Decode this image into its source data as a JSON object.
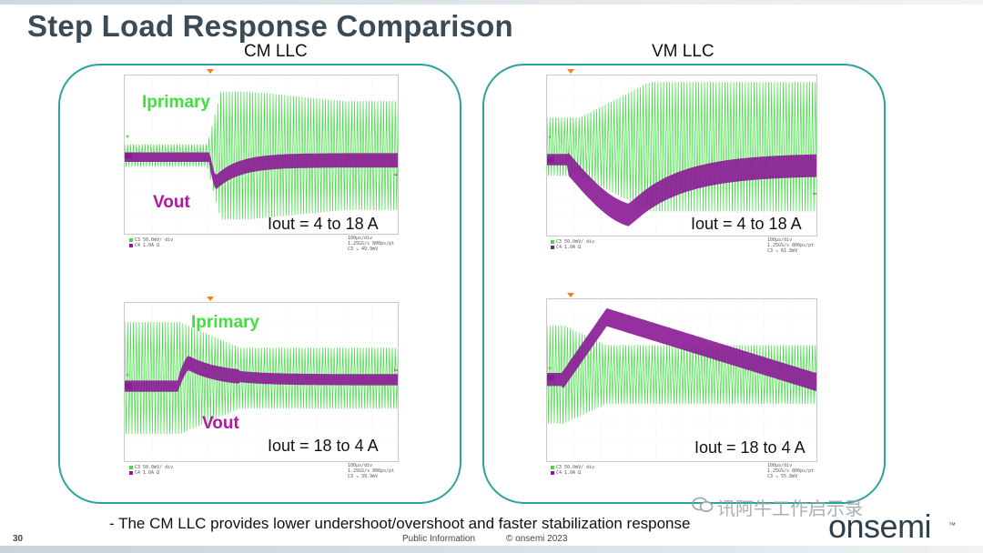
{
  "title": "Step Load Response Comparison",
  "columns": [
    {
      "label": "CM LLC"
    },
    {
      "label": "VM LLC"
    }
  ],
  "scopes": {
    "cm_step_up": {
      "iout": "Iout = 4 to 18 A",
      "primary_label": "Iprimary",
      "vout_label": "Vout"
    },
    "cm_step_down": {
      "iout": "Iout = 18 to 4 A",
      "primary_label": "Iprimary",
      "vout_label": "Vout"
    },
    "vm_step_up": {
      "iout": "Iout = 4 to 18 A"
    },
    "vm_step_down": {
      "iout": "Iout = 18 to 4 A"
    }
  },
  "scope_info": {
    "c3": "C3  50.0mV/ div",
    "c4": "C4  1.0A   Ω",
    "timebase": "100µs/div",
    "sample": "1.25GS/s   800ps/pt",
    "cm_up_level": "C3 ↘ 49.9mV",
    "cm_down_level": "C3 ↘ 39.9mV",
    "vm_up_level": "C3 ↘ 61.8mV",
    "vm_down_level": "C3 ↘ 55.8mV"
  },
  "note": "- The CM LLC provides lower undershoot/overshoot and faster stabilization response",
  "footer": {
    "page_number": "30",
    "public_information": "Public Information",
    "copyright": "© onsemi 2023"
  },
  "watermark": "讯阿牛工作启示录",
  "logo_text": "onsemi",
  "colors": {
    "primary_trace": "#3fe03f",
    "vout_trace": "#8b1a96",
    "panel_border": "#2aa39a",
    "title": "#3a4a56"
  }
}
